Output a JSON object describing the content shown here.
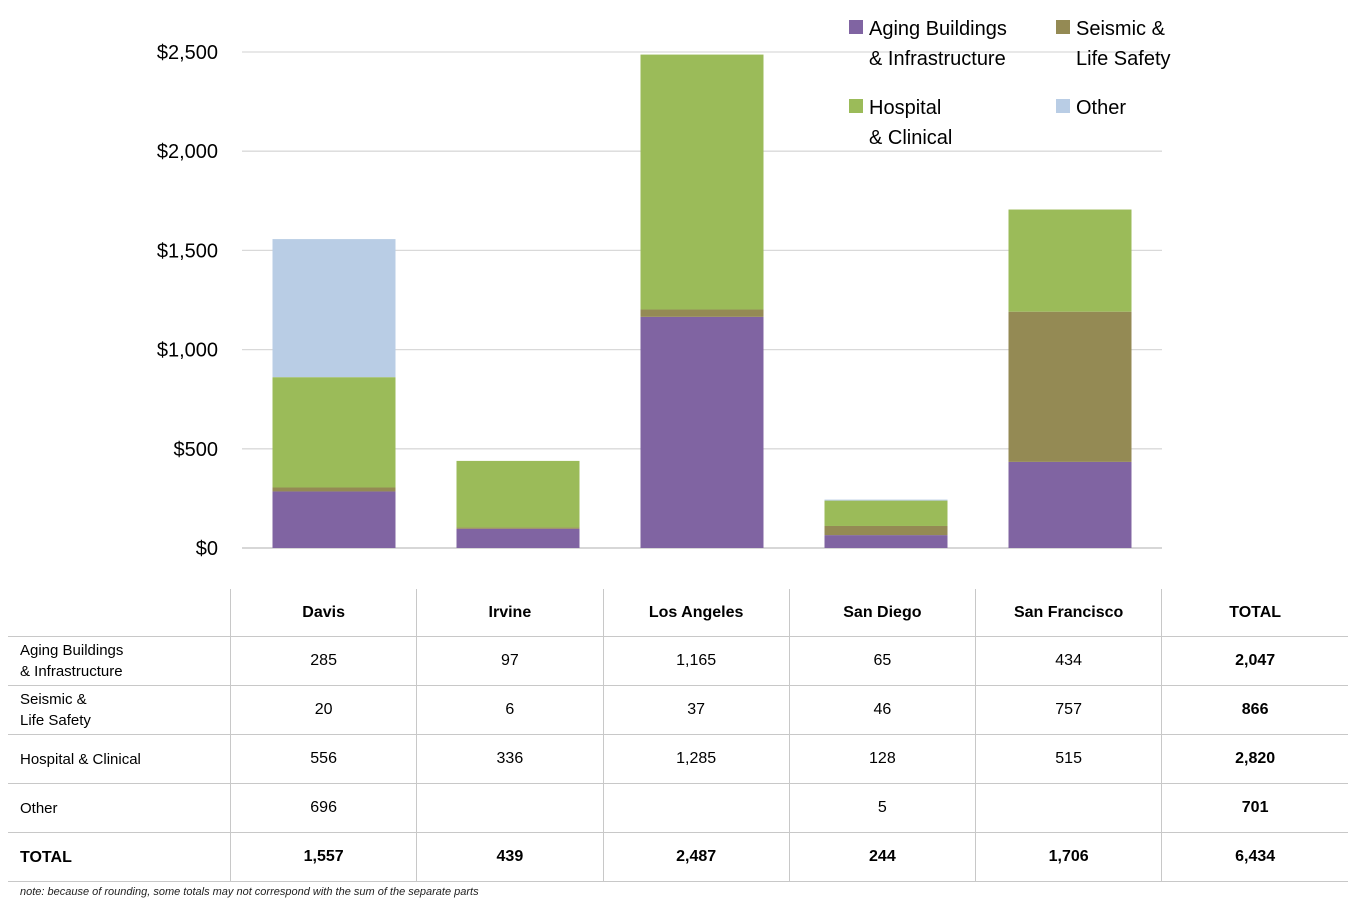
{
  "chart_data": {
    "type": "bar",
    "stacked": true,
    "categories": [
      "Davis",
      "Irvine",
      "Los Angeles",
      "San Diego",
      "San Francisco"
    ],
    "series": [
      {
        "name": "Aging  Buildings\n& Infrastructure",
        "color": "#8064a2",
        "values": [
          285,
          97,
          1165,
          65,
          434
        ]
      },
      {
        "name": "Seismic &\nLife Safety",
        "color": "#948a54",
        "values": [
          20,
          6,
          37,
          46,
          757
        ]
      },
      {
        "name": "Hospital\n& Clinical",
        "color": "#9bbb59",
        "values": [
          556,
          336,
          1285,
          128,
          515
        ]
      },
      {
        "name": "Other",
        "color": "#b9cde5",
        "values": [
          696,
          0,
          0,
          5,
          0
        ]
      }
    ],
    "ylim": [
      0,
      2500
    ],
    "yticks": [
      "$2,500",
      "$2,000",
      "$1,500",
      "$1,000",
      "$500",
      "$0"
    ],
    "ytick_values": [
      2500,
      2000,
      1500,
      1000,
      500,
      0
    ],
    "grid": true,
    "legend": "top-right"
  },
  "table": {
    "headers": [
      "Davis",
      "Irvine",
      "Los Angeles",
      "San Diego",
      "San Francisco",
      "TOTAL"
    ],
    "rows": [
      {
        "label": "Aging Buildings\n& Infrastructure",
        "cells": [
          "285",
          "97",
          "1,165",
          "65",
          "434",
          "2,047"
        ]
      },
      {
        "label": "Seismic &\nLife Safety",
        "cells": [
          "20",
          "6",
          "37",
          "46",
          "757",
          "866"
        ]
      },
      {
        "label": "Hospital & Clinical",
        "cells": [
          "556",
          "336",
          "1,285",
          "128",
          "515",
          "2,820"
        ]
      },
      {
        "label": "Other",
        "cells": [
          "696",
          "",
          "",
          "5",
          "",
          "701"
        ]
      },
      {
        "label": "TOTAL",
        "cells": [
          "1,557",
          "439",
          "2,487",
          "244",
          "1,706",
          "6,434"
        ]
      }
    ]
  },
  "note": "note: because of rounding, some totals may not correspond with the sum of the separate parts"
}
